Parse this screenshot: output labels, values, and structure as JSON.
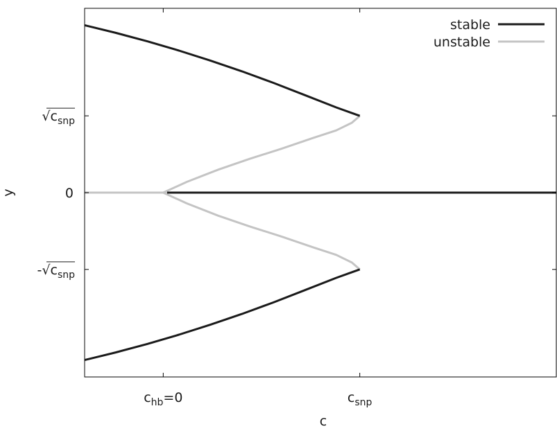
{
  "chart_data": {
    "type": "line",
    "title": "",
    "xlabel": "c",
    "ylabel": "y",
    "xlim": [
      -1,
      5
    ],
    "ylim": [
      -2.4,
      2.4
    ],
    "grid": false,
    "legend_position": "top-right",
    "x_ticks": [
      {
        "value": 0,
        "label": "c",
        "sub": "hb",
        "suffix": "=0"
      },
      {
        "value": 2.5,
        "label": "c",
        "sub": "snp",
        "suffix": ""
      }
    ],
    "y_ticks": [
      {
        "value": 1,
        "label": "√c",
        "sub": "snp",
        "prefix": ""
      },
      {
        "value": 0,
        "label": "0",
        "sub": "",
        "prefix": ""
      },
      {
        "value": -1,
        "label": "√c",
        "sub": "snp",
        "prefix": "-"
      }
    ],
    "colors": {
      "stable": "#1a1a1a",
      "unstable": "#c4c4c4",
      "axis": "#000000"
    },
    "series": [
      {
        "name": "stable",
        "color": "#1a1a1a",
        "segments": [
          {
            "x": [
              -1,
              -0.6,
              -0.2,
              0.2,
              0.6,
              1.0,
              1.4,
              1.8,
              2.2,
              2.5
            ],
            "y": [
              2.18,
              2.08,
              1.97,
              1.85,
              1.72,
              1.58,
              1.43,
              1.27,
              1.11,
              1.0
            ]
          },
          {
            "x": [
              -1,
              -0.6,
              -0.2,
              0.2,
              0.6,
              1.0,
              1.4,
              1.8,
              2.2,
              2.5
            ],
            "y": [
              -2.18,
              -2.08,
              -1.97,
              -1.85,
              -1.72,
              -1.58,
              -1.43,
              -1.27,
              -1.11,
              -1.0
            ]
          },
          {
            "x": [
              0.05,
              5
            ],
            "y": [
              0,
              0
            ]
          }
        ]
      },
      {
        "name": "unstable",
        "color": "#c4c4c4",
        "segments": [
          {
            "x": [
              -1,
              0.05
            ],
            "y": [
              0,
              0
            ]
          },
          {
            "x": [
              0.0,
              0.3,
              0.7,
              1.1,
              1.5,
              1.9,
              2.2,
              2.4,
              2.5
            ],
            "y": [
              0.0,
              0.14,
              0.3,
              0.44,
              0.57,
              0.71,
              0.81,
              0.91,
              1.0
            ]
          },
          {
            "x": [
              0.0,
              0.3,
              0.7,
              1.1,
              1.5,
              1.9,
              2.2,
              2.4,
              2.5
            ],
            "y": [
              0.0,
              -0.14,
              -0.3,
              -0.44,
              -0.57,
              -0.71,
              -0.81,
              -0.91,
              -1.0
            ]
          }
        ]
      }
    ]
  }
}
